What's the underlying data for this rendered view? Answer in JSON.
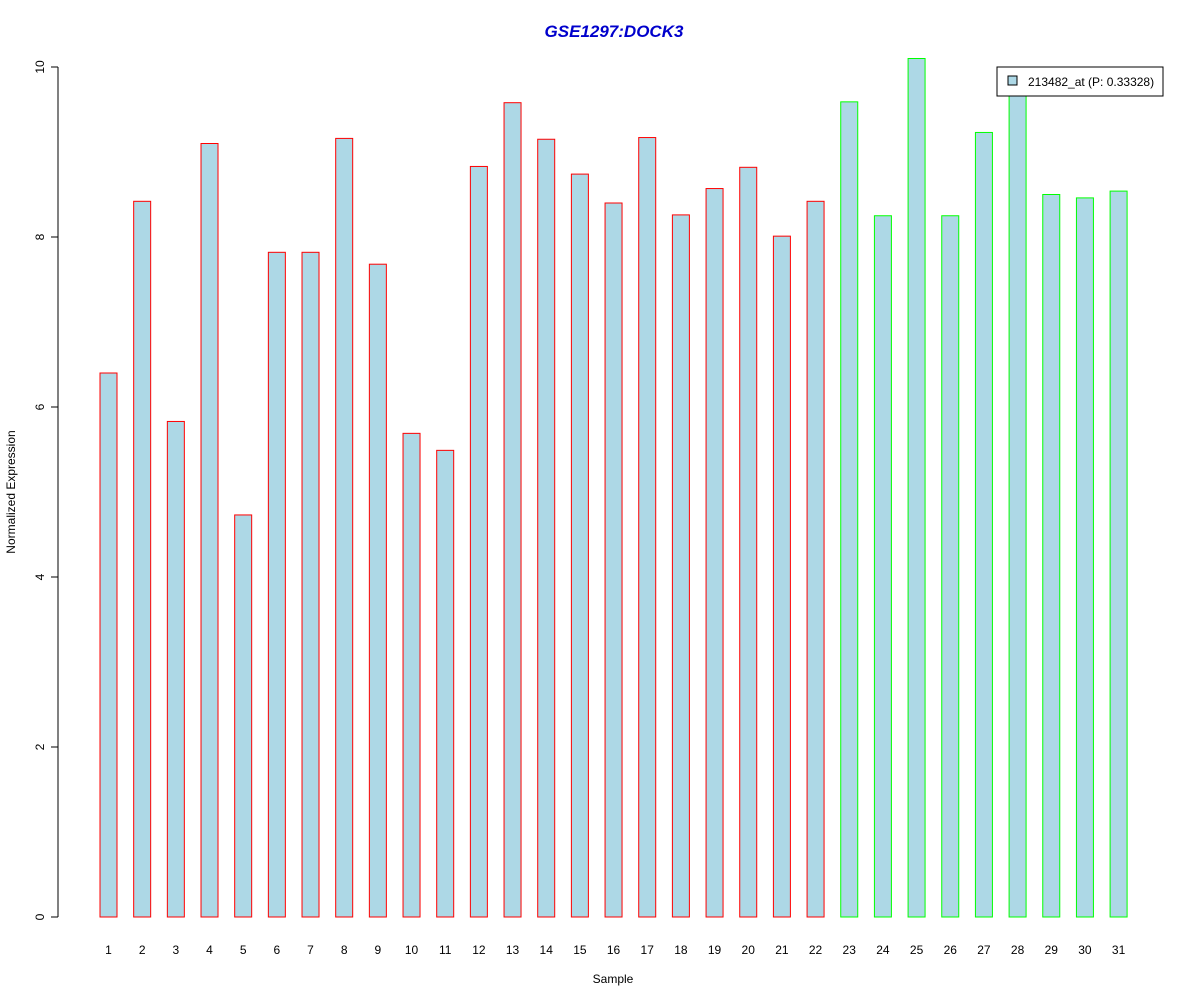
{
  "chart_data": {
    "type": "bar",
    "title": "GSE1297:DOCK3",
    "xlabel": "Sample",
    "ylabel": "Normalized Expression",
    "categories": [
      "1",
      "2",
      "3",
      "4",
      "5",
      "6",
      "7",
      "8",
      "9",
      "10",
      "11",
      "12",
      "13",
      "14",
      "15",
      "16",
      "17",
      "18",
      "19",
      "20",
      "21",
      "22",
      "23",
      "24",
      "25",
      "26",
      "27",
      "28",
      "29",
      "30",
      "31"
    ],
    "series": [
      {
        "name": "213482_at (P: 0.33328)",
        "values": [
          6.4,
          8.42,
          5.83,
          9.1,
          4.73,
          7.82,
          7.82,
          9.16,
          7.68,
          5.69,
          5.49,
          8.83,
          9.58,
          9.15,
          8.74,
          8.4,
          9.17,
          8.26,
          8.57,
          8.82,
          8.01,
          8.42,
          9.59,
          8.25,
          10.1,
          8.25,
          9.23,
          9.66,
          8.5,
          8.46,
          8.54
        ]
      }
    ],
    "group_sizes": [
      22,
      9
    ],
    "ylim": [
      0,
      10
    ],
    "yticks": [
      0,
      2,
      4,
      6,
      8,
      10
    ],
    "grid": false,
    "legend_position": "top-right"
  },
  "colors": {
    "title": "#0000cc",
    "bar_fill": "#add8e6",
    "group_borders": [
      "#ff0000",
      "#00ff00"
    ],
    "axis": "#000000",
    "legend_border": "#000000"
  }
}
